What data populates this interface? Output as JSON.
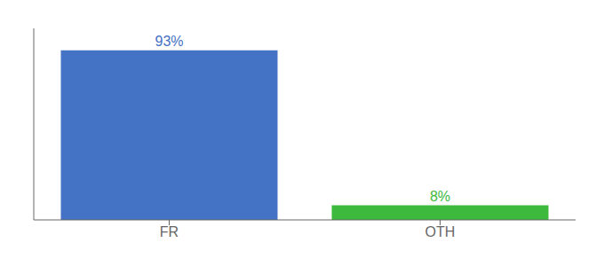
{
  "chart_data": {
    "type": "bar",
    "categories": [
      "FR",
      "OTH"
    ],
    "values": [
      93,
      8
    ],
    "value_labels": [
      "93%",
      "8%"
    ],
    "colors": [
      "#4472c4",
      "#3db93d"
    ],
    "ylim": [
      0,
      105
    ],
    "yticks": [],
    "data_labels": true,
    "tick_labels": "x",
    "grid": false
  }
}
